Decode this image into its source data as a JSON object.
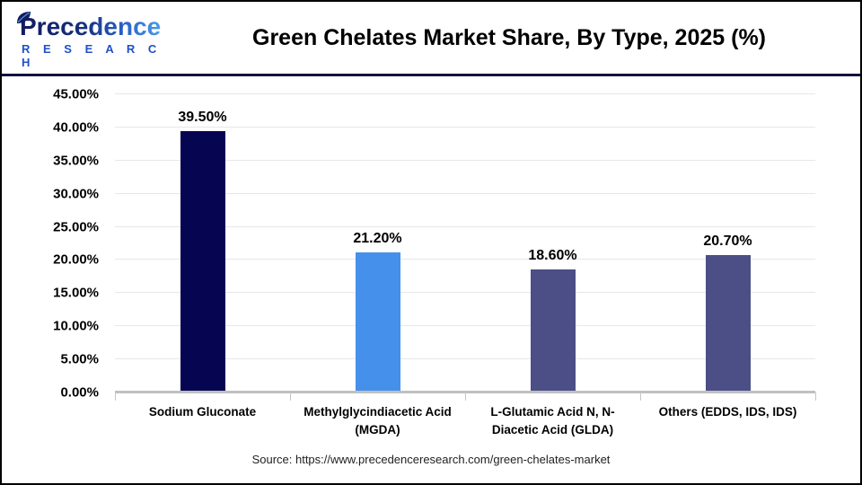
{
  "header": {
    "logo_line1": "Precedence",
    "logo_line2": "R E S E A R C H",
    "title": "Green Chelates Market Share, By Type, 2025 (%)"
  },
  "chart_data": {
    "type": "bar",
    "title": "Green Chelates Market Share, By Type, 2025 (%)",
    "categories": [
      "Sodium Gluconate",
      "Methylglycindiacetic Acid (MGDA)",
      "L-Glutamic Acid N, N-Diacetic Acid (GLDA)",
      "Others (EDDS, IDS, IDS)"
    ],
    "values": [
      39.5,
      21.2,
      18.6,
      20.7
    ],
    "value_labels": [
      "39.50%",
      "21.20%",
      "18.60%",
      "20.70%"
    ],
    "bar_colors": [
      "#050551",
      "#4590eb",
      "#4b4f86",
      "#4b4f86"
    ],
    "xlabel": "",
    "ylabel": "",
    "ylim": [
      0,
      45
    ],
    "ytick_step": 5,
    "ytick_labels": [
      "45.00%",
      "40.00%",
      "35.00%",
      "30.00%",
      "25.00%",
      "20.00%",
      "15.00%",
      "10.00%",
      "5.00%",
      "0.00%"
    ],
    "grid": true,
    "legend": false
  },
  "footer": {
    "source": "Source: https://www.precedenceresearch.com/green-chelates-market"
  },
  "colors": {
    "separator": "#11113f",
    "gridline": "#e7e7ea",
    "axis_line": "#c0c0c0",
    "logo_dark": "#131a5e",
    "logo_light": "#4c9be8",
    "logo_research": "#2050c8"
  }
}
